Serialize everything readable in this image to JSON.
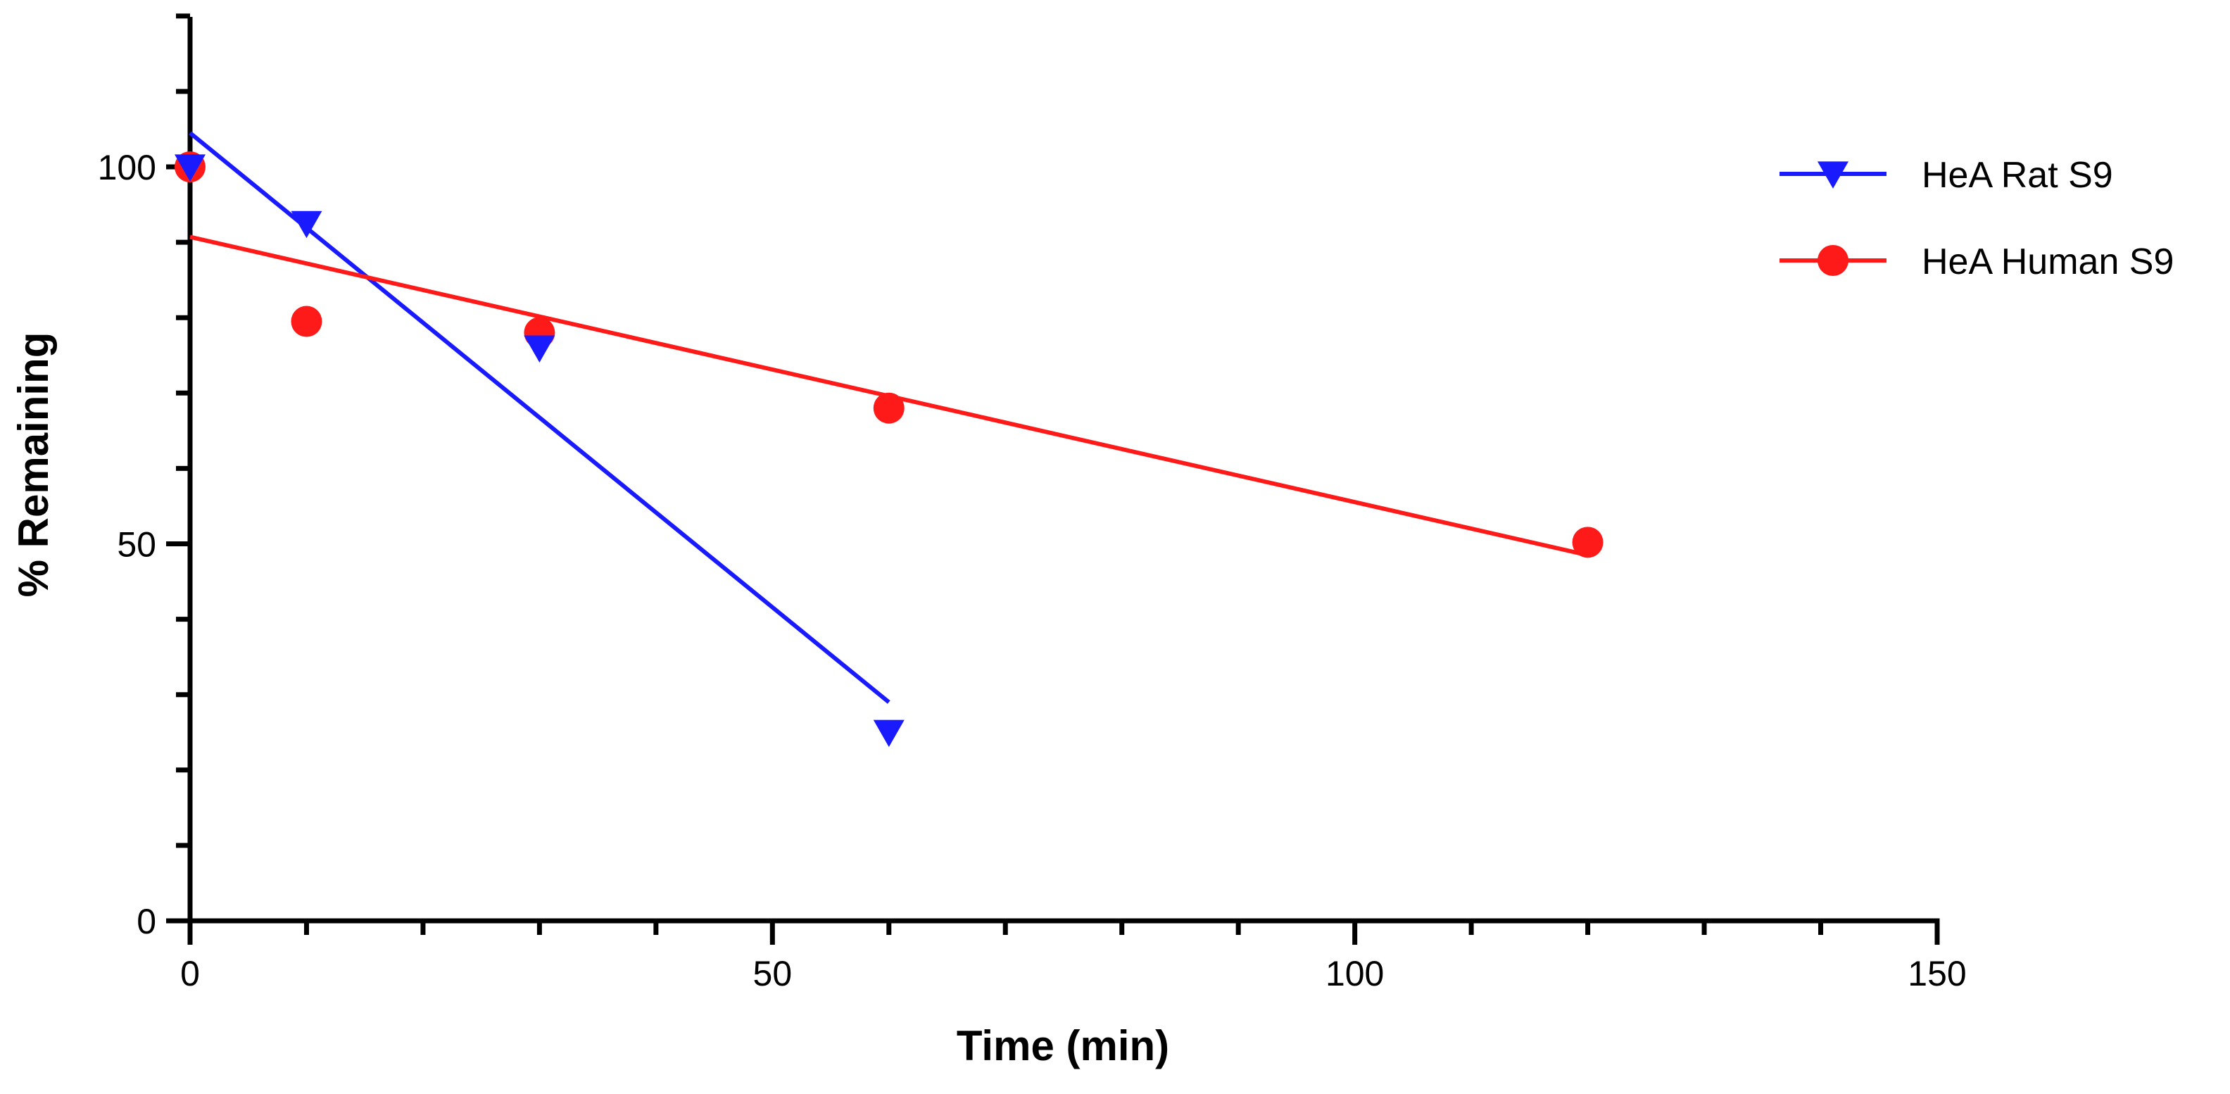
{
  "chart_data": {
    "type": "scatter",
    "title": "",
    "xlabel": "Time (min)",
    "ylabel": "% Remaining",
    "xlim": [
      0,
      150
    ],
    "ylim": [
      0,
      120
    ],
    "x_major_ticks": [
      0,
      50,
      100,
      150
    ],
    "x_tick_labels": [
      "0",
      "50",
      "100",
      "150"
    ],
    "x_minor_step": 10,
    "y_major_ticks": [
      0,
      50,
      100
    ],
    "y_tick_labels": [
      "0",
      "50",
      "100"
    ],
    "y_minor_step": 10,
    "grid": false,
    "legend_position": "top-right",
    "series": [
      {
        "name": "HeA Rat S9",
        "color": "#1a1aff",
        "marker": "triangle-down",
        "points": [
          {
            "x": 0,
            "y": 100
          },
          {
            "x": 10,
            "y": 92.5
          },
          {
            "x": 30,
            "y": 76
          },
          {
            "x": 60,
            "y": 25
          }
        ],
        "fit_line": {
          "x_start": 0,
          "y_start": 104.5,
          "x_end": 60,
          "y_end": 29
        }
      },
      {
        "name": "HeA Human S9",
        "color": "#ff1a1a",
        "marker": "circle",
        "points": [
          {
            "x": 0,
            "y": 100
          },
          {
            "x": 10,
            "y": 79.5
          },
          {
            "x": 30,
            "y": 78
          },
          {
            "x": 60,
            "y": 68
          },
          {
            "x": 120,
            "y": 50.2
          }
        ],
        "fit_line": {
          "x_start": 0,
          "y_start": 90.7,
          "x_end": 120,
          "y_end": 48.5
        }
      }
    ]
  }
}
